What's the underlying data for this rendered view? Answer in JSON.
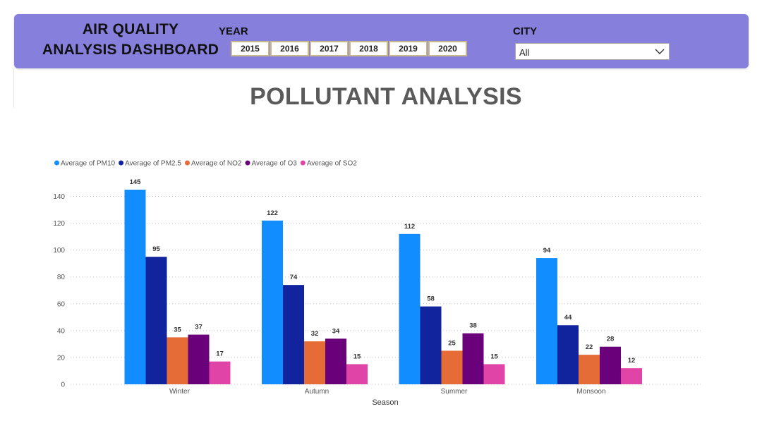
{
  "header": {
    "title_line1": "AIR QUALITY",
    "title_line2": "ANALYSIS DASHBOARD",
    "year_label": "YEAR",
    "years": [
      "2015",
      "2016",
      "2017",
      "2018",
      "2019",
      "2020"
    ],
    "city_label": "CITY",
    "city_value": "All",
    "background": "#8680dc"
  },
  "page_title": "POLLUTANT ANALYSIS",
  "chart_data": {
    "type": "bar",
    "title": "",
    "xlabel": "Season",
    "ylabel": "",
    "categories": [
      "Winter",
      "Autumn",
      "Summer",
      "Monsoon"
    ],
    "series": [
      {
        "name": "Average of PM10",
        "color": "#118dff",
        "values": [
          145,
          122,
          112,
          94
        ]
      },
      {
        "name": "Average of PM2.5",
        "color": "#12239e",
        "values": [
          95,
          74,
          58,
          44
        ]
      },
      {
        "name": "Average of NO2",
        "color": "#e66c37",
        "values": [
          35,
          32,
          25,
          22
        ]
      },
      {
        "name": "Average of O3",
        "color": "#6b007b",
        "values": [
          37,
          34,
          38,
          28
        ]
      },
      {
        "name": "Average of SO2",
        "color": "#e044a7",
        "values": [
          17,
          15,
          15,
          12
        ]
      }
    ],
    "ylim": [
      0,
      145
    ],
    "yticks": [
      0,
      20,
      40,
      60,
      80,
      100,
      120,
      140
    ],
    "grid": true,
    "legend": "top-left"
  }
}
